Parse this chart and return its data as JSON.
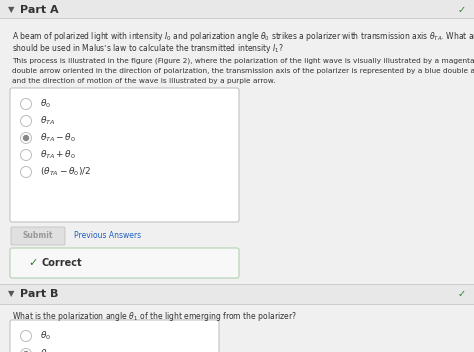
{
  "bg_color": "#f0f0f0",
  "white": "#ffffff",
  "part_a_header": "Part A",
  "part_b_header": "Part B",
  "question_a_1": "A beam of polarized light with intensity $I_0$ and polarization angle $\\theta_0$ strikes a polarizer with transmission axis $\\theta_{TA}$. What angle $\\theta$",
  "question_a_2": "should be used in Malus’s law to calculate the transmitted intensity $I_1$?",
  "para_a_1": "This process is illustrated in the figure (Figure 2), where the polarization of the light wave is visually illustrated by a magenta",
  "para_a_2": "double arrow oriented in the direction of polarization, the transmission axis of the polarizer is represented by a blue double arrow,",
  "para_a_3": "and the direction of motion of the wave is illustrated by a purple arrow.",
  "choices_a": [
    "$\\theta_0$",
    "$\\theta_{TA}$",
    "$\\theta_{TA} - \\theta_0$",
    "$\\theta_{TA} + \\theta_0$",
    "$(\\theta_{TA} - \\theta_0)/2$"
  ],
  "correct_choice_a": 2,
  "submit_label": "Submit",
  "previous_answers_label": "Previous Answers",
  "correct_label": "Correct",
  "question_b": "What is the polarization angle $\\theta_1$ of the light emerging from the polarizer?",
  "choices_b": [
    "$\\theta_0$",
    "$\\theta_{TA}$"
  ],
  "correct_choice_b": 1,
  "header_color": "#333333",
  "text_color": "#333333",
  "link_color": "#2060c0",
  "choice_border": "#bbbbbb",
  "correct_green": "#2e7d32",
  "submit_bg": "#e0e0e0",
  "submit_text": "#999999",
  "selected_radio_color": "#888888",
  "separator_color": "#cccccc",
  "part_b_bg": "#e8e8e8",
  "correct_box_bg": "#f8f8f8"
}
